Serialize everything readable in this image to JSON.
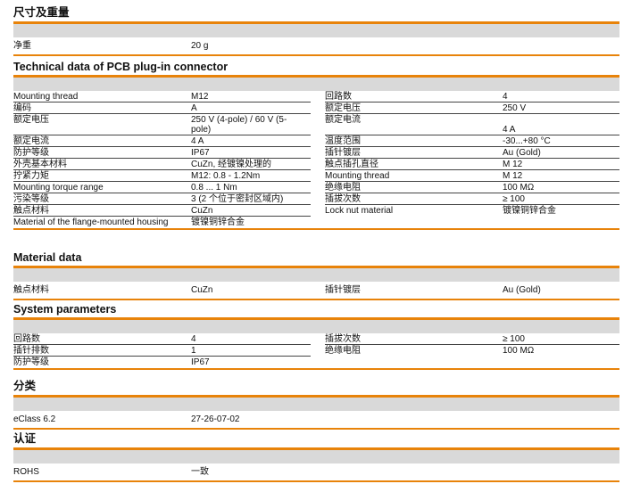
{
  "accent_color": "#e8830a",
  "band_color": "#d9d9d9",
  "sections": [
    {
      "title": "尺寸及重量",
      "left": [
        {
          "k": "净重",
          "v": "20 g"
        }
      ],
      "right": []
    },
    {
      "title": "Technical data of PCB plug-in connector",
      "left": [
        {
          "k": "Mounting thread",
          "v": "M12"
        },
        {
          "k": "编码",
          "v": "A"
        },
        {
          "k": "额定电压",
          "v": "250 V (4-pole) / 60 V (5-\npole)"
        },
        {
          "k": "额定电流",
          "v": "4 A"
        },
        {
          "k": "防护等级",
          "v": "IP67"
        },
        {
          "k": "外壳基本材料",
          "v": "CuZn, 经镀镍处理的"
        },
        {
          "k": "拧紧力矩",
          "v": "M12: 0.8 - 1.2Nm"
        },
        {
          "k": "Mounting torque range",
          "v": "0.8 ... 1 Nm"
        },
        {
          "k": "污染等级",
          "v": "3 (2 个位于密封区域内)"
        },
        {
          "k": "触点材料",
          "v": "CuZn"
        },
        {
          "k": "Material of the flange-mounted housing",
          "v": "镀镍铜锌合金"
        }
      ],
      "right": [
        {
          "k": "回路数",
          "v": "4"
        },
        {
          "k": "额定电压",
          "v": "250 V"
        },
        {
          "k": "额定电流",
          "v": "\n4 A"
        },
        {
          "k": "温度范围",
          "v": "-30...+80 °C"
        },
        {
          "k": "插针镀层",
          "v": "Au (Gold)"
        },
        {
          "k": "触点插孔直径",
          "v": "M 12"
        },
        {
          "k": "Mounting thread",
          "v": "M 12"
        },
        {
          "k": "绝缘电阻",
          "v": "100 MΩ"
        },
        {
          "k": "插拔次数",
          "v": "≥ 100"
        },
        {
          "k": "Lock nut material",
          "v": "镀镍铜锌合金"
        }
      ]
    },
    {
      "title": "Material data",
      "left": [
        {
          "k": "触点材料",
          "v": "CuZn"
        }
      ],
      "right": [
        {
          "k": "插针镀层",
          "v": "Au (Gold)"
        }
      ]
    },
    {
      "title": "System parameters",
      "left": [
        {
          "k": "回路数",
          "v": "4"
        },
        {
          "k": "插针排数",
          "v": "1"
        },
        {
          "k": "防护等级",
          "v": "IP67"
        }
      ],
      "right": [
        {
          "k": "插拔次数",
          "v": "≥ 100"
        },
        {
          "k": "绝缘电阻",
          "v": "100 MΩ"
        }
      ]
    },
    {
      "title": "分类",
      "left": [
        {
          "k": "eClass 6.2",
          "v": "27-26-07-02"
        }
      ],
      "right": []
    },
    {
      "title": "认证",
      "left": [
        {
          "k": "ROHS",
          "v": "一致"
        }
      ],
      "right": []
    }
  ]
}
